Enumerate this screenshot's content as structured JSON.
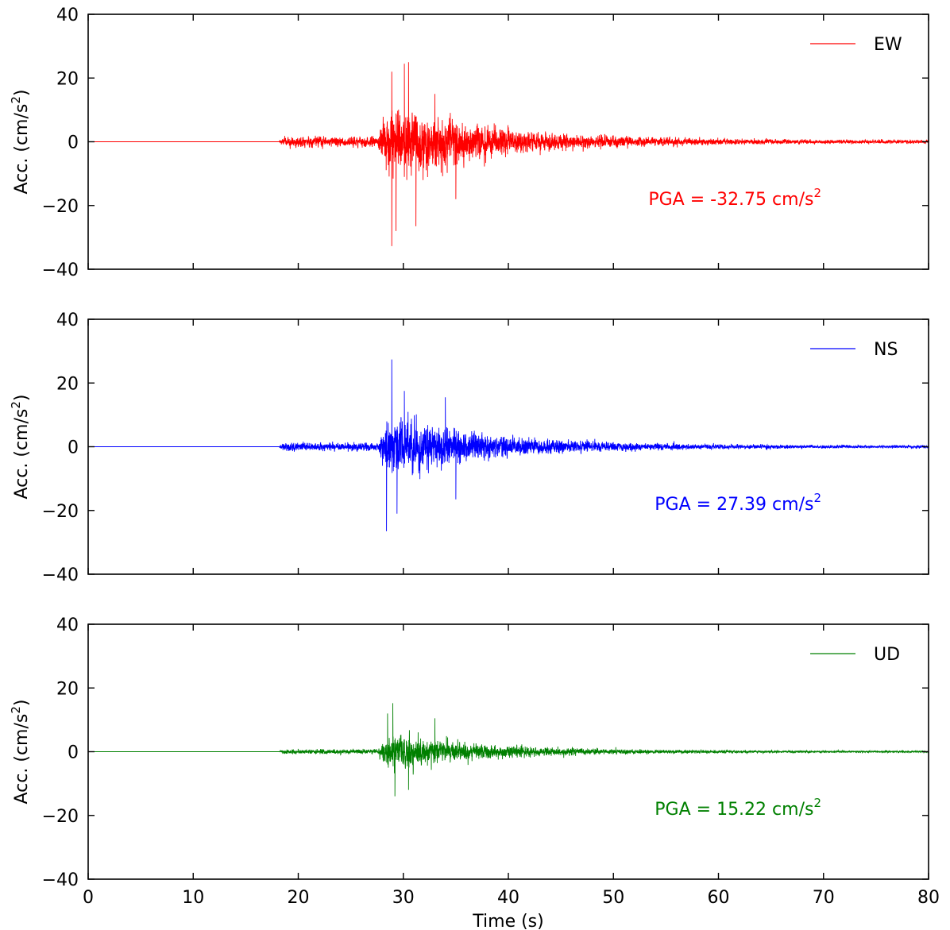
{
  "chart_data": [
    {
      "type": "line",
      "series": [
        {
          "name": "EW",
          "color": "#ff0000"
        }
      ],
      "ylabel": "Acc. (cm/s²)",
      "ylim": [
        -40,
        40
      ],
      "yticks": [
        "40",
        "20",
        "0",
        "−20",
        "−40"
      ],
      "xlim": [
        0,
        80
      ],
      "annotation": {
        "prefix": "PGA = -32.75 cm/s",
        "sup": "2"
      },
      "arrival_time": 18.2,
      "peak_time": 29.8,
      "pga": -32.75,
      "envelope_peak": 15,
      "sample_peaks": [
        {
          "x": 28.9,
          "y": -32.75
        },
        {
          "x": 28.9,
          "y": 22
        },
        {
          "x": 30.5,
          "y": 25
        },
        {
          "x": 30.1,
          "y": 24.5
        },
        {
          "x": 29.3,
          "y": -28
        },
        {
          "x": 31.2,
          "y": -26.5
        },
        {
          "x": 33.0,
          "y": 15
        },
        {
          "x": 35.0,
          "y": -18
        }
      ],
      "legend_position": "top-right",
      "grid": false
    },
    {
      "type": "line",
      "series": [
        {
          "name": "NS",
          "color": "#0000ff"
        }
      ],
      "ylabel": "Acc. (cm/s²)",
      "ylim": [
        -40,
        40
      ],
      "yticks": [
        "40",
        "20",
        "0",
        "−20",
        "−40"
      ],
      "xlim": [
        0,
        80
      ],
      "annotation": {
        "prefix": "PGA = 27.39 cm/s",
        "sup": "2"
      },
      "arrival_time": 18.2,
      "peak_time": 29.5,
      "pga": 27.39,
      "envelope_peak": 12,
      "sample_peaks": [
        {
          "x": 28.9,
          "y": 27.39
        },
        {
          "x": 28.4,
          "y": -26.5
        },
        {
          "x": 29.4,
          "y": -21
        },
        {
          "x": 30.1,
          "y": 17.5
        },
        {
          "x": 34.0,
          "y": 15.5
        },
        {
          "x": 35.0,
          "y": -16.5
        }
      ],
      "legend_position": "top-right",
      "grid": false
    },
    {
      "type": "line",
      "series": [
        {
          "name": "UD",
          "color": "#008000"
        }
      ],
      "ylabel": "Acc. (cm/s²)",
      "ylim": [
        -40,
        40
      ],
      "yticks": [
        "40",
        "20",
        "0",
        "−20",
        "−40"
      ],
      "xlim": [
        0,
        80
      ],
      "xticks": [
        "0",
        "10",
        "20",
        "30",
        "40",
        "50",
        "60",
        "70",
        "80"
      ],
      "xlabel": "Time (s)",
      "annotation": {
        "prefix": "PGA = 15.22 cm/s",
        "sup": "2"
      },
      "arrival_time": 18.2,
      "peak_time": 29.5,
      "pga": 15.22,
      "envelope_peak": 7,
      "sample_peaks": [
        {
          "x": 29.0,
          "y": 15.22
        },
        {
          "x": 29.2,
          "y": -14
        },
        {
          "x": 30.5,
          "y": -12
        },
        {
          "x": 33.0,
          "y": 10.5
        },
        {
          "x": 28.5,
          "y": 12
        }
      ],
      "legend_position": "top-right",
      "grid": false
    }
  ]
}
